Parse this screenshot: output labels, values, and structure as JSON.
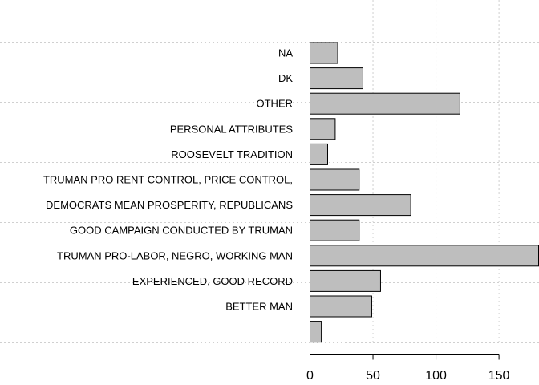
{
  "chart_data": {
    "type": "bar",
    "orientation": "horizontal",
    "categories": [
      "NA",
      "DK",
      "OTHER",
      "PERSONAL ATTRIBUTES",
      "ROOSEVELT TRADITION",
      "TRUMAN PRO RENT CONTROL, PRICE CONTROL,",
      "DEMOCRATS MEAN PROSPERITY, REPUBLICANS",
      "GOOD CAMPAIGN CONDUCTED BY TRUMAN",
      "TRUMAN PRO-LABOR, NEGRO, WORKING MAN",
      "EXPERIENCED, GOOD RECORD",
      "BETTER MAN",
      ""
    ],
    "values": [
      22,
      42,
      119,
      20,
      14,
      39,
      80,
      39,
      182,
      56,
      49,
      9
    ],
    "xlim": [
      0,
      182
    ],
    "xticks": [
      0,
      50,
      100,
      150
    ],
    "grid": true,
    "bar_color": "#bebebe",
    "title": "",
    "xlabel": "",
    "ylabel": ""
  }
}
